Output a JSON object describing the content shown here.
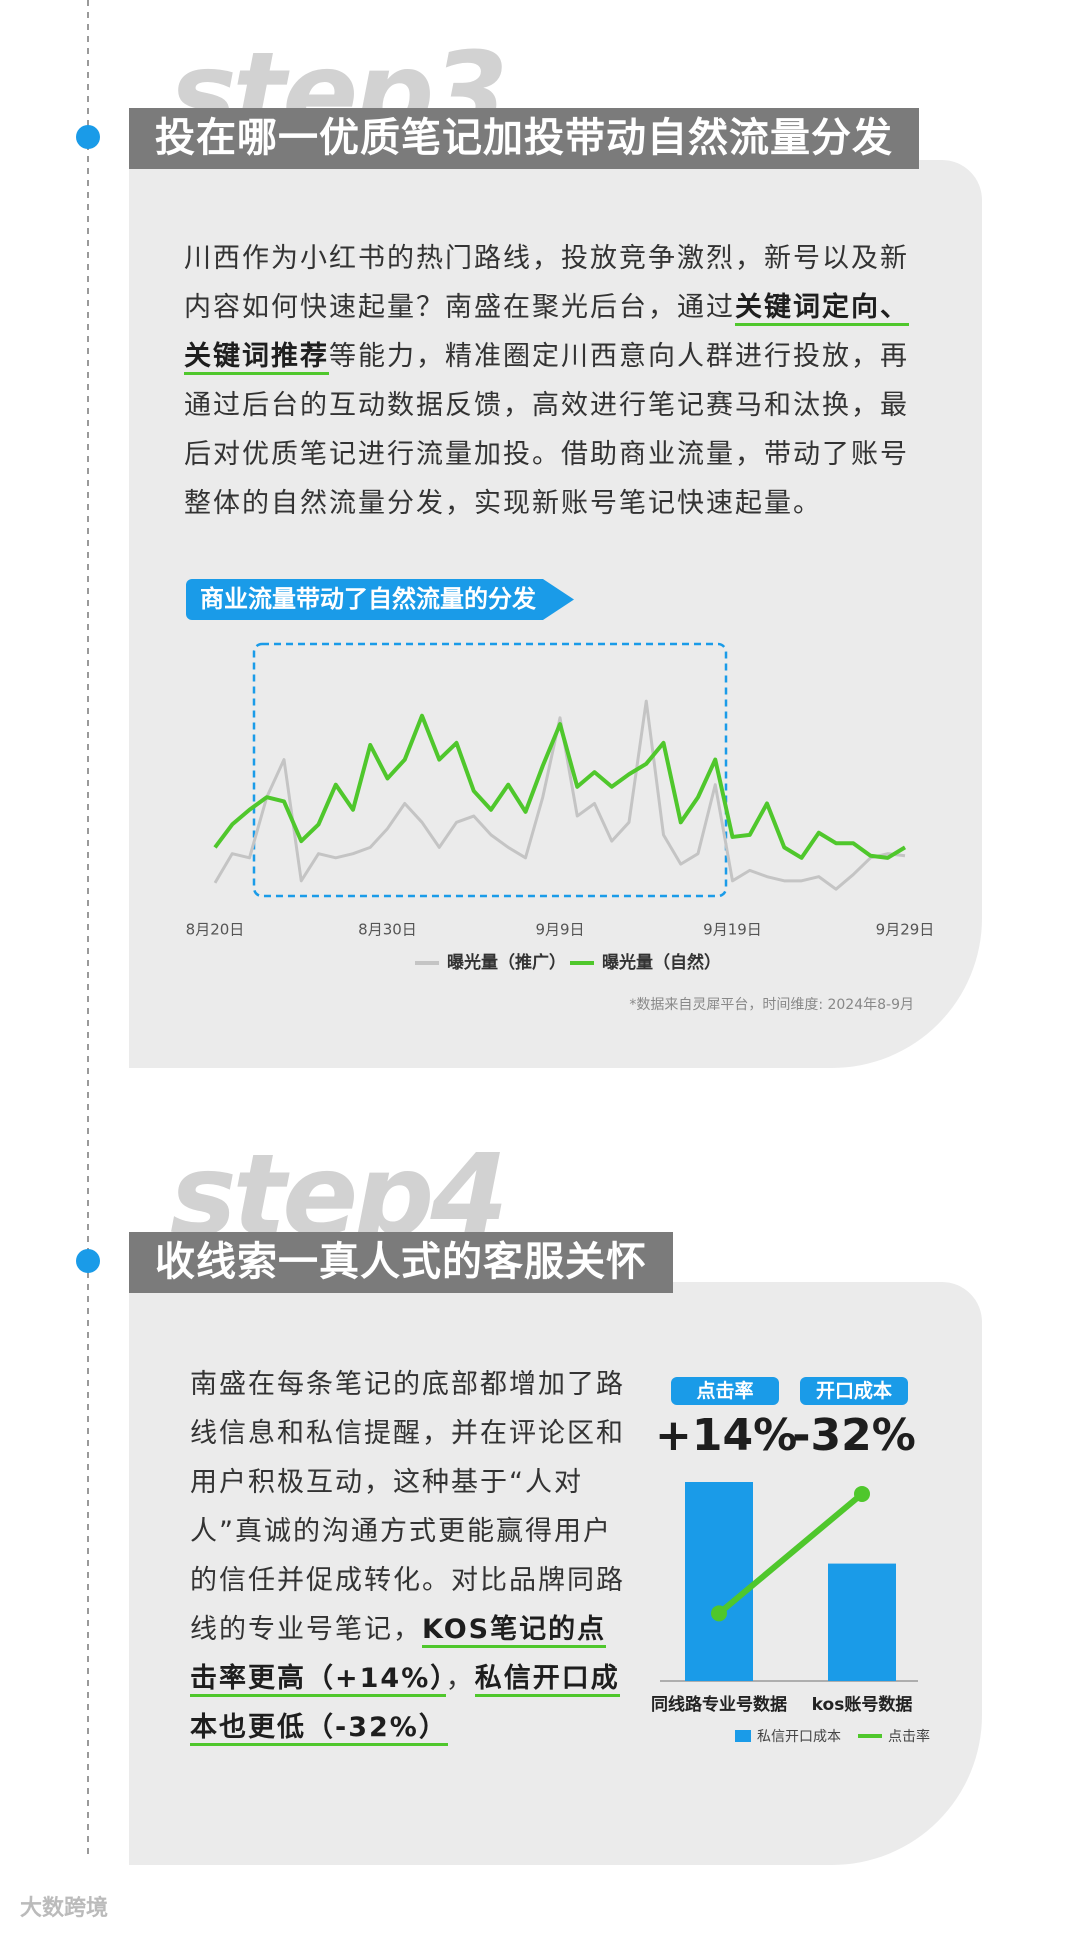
{
  "step3": {
    "heading": "step3",
    "title": "投在哪一优质笔记加投带动自然流量分发",
    "paragraph": [
      {
        "text": "川西作为小红书的热门路线，投放竞争激烈，新号以及新内容如何快速起量？南盛在聚光后台，通过",
        "emphasis": false
      },
      {
        "text": "关键词定向、关键词推荐",
        "emphasis": true
      },
      {
        "text": "等能力，精准圈定川西意向人群进行投放，再通过后台的互动数据反馈，高效进行笔记赛马和汰换，最后对优质笔记进行流量加投。借助商业流量，带动了账号整体的自然流量分发，实现新账号笔记快速起量。",
        "emphasis": false
      }
    ],
    "chart_data": {
      "type": "line",
      "title": "商业流量带动了自然流量的分发",
      "categories": [
        "8月20日",
        null,
        null,
        null,
        null,
        null,
        null,
        null,
        null,
        null,
        "8月30日",
        null,
        null,
        null,
        null,
        null,
        null,
        null,
        null,
        null,
        "9月9日",
        null,
        null,
        null,
        null,
        null,
        null,
        null,
        null,
        null,
        "9月19日",
        null,
        null,
        null,
        null,
        null,
        null,
        null,
        null,
        null,
        "9月29日"
      ],
      "series": [
        {
          "name": "曝光量（推广）",
          "color": "#c4c4c4",
          "values": [
            12,
            26,
            24,
            53,
            71,
            13,
            26,
            24,
            26,
            29,
            38,
            50,
            41,
            29,
            41,
            44,
            35,
            29,
            24,
            53,
            91,
            44,
            50,
            32,
            41,
            99,
            35,
            21,
            26,
            59,
            13,
            18,
            15,
            13,
            13,
            15,
            9,
            16,
            24,
            26,
            25
          ]
        },
        {
          "name": "曝光量（自然）",
          "color": "#4fc72c",
          "values": [
            29,
            40,
            47,
            53,
            51,
            32,
            40,
            59,
            47,
            78,
            62,
            71,
            92,
            71,
            79,
            56,
            47,
            59,
            46,
            68,
            88,
            58,
            65,
            58,
            64,
            69,
            79,
            41,
            53,
            71,
            34,
            35,
            50,
            29,
            24,
            36,
            31,
            31,
            25,
            24,
            29
          ]
        }
      ],
      "ylim": [
        0,
        100
      ],
      "note": "*数据来自灵犀平台，时间维度: 2024年8-9月"
    }
  },
  "step4": {
    "heading": "step4",
    "title": "收线索一真人式的客服关怀",
    "paragraph": [
      {
        "text": "南盛在每条笔记的底部都增加了路线信息和私信提醒，并在评论区和用户积极互动，这种基于“人对人”真诚的沟通方式更能赢得用户的信任并促成转化。对比品牌同路线的专业号笔记，",
        "emphasis": false
      },
      {
        "text": "KOS笔记的点击率更高（+14%）",
        "emphasis": true
      },
      {
        "text": "，",
        "emphasis": false
      },
      {
        "text": "私信开口成本也更低（-32%）",
        "emphasis": true
      }
    ],
    "chart_data": {
      "type": "combo",
      "categories": [
        "同线路专业号数据",
        "kos账号数据"
      ],
      "series": [
        {
          "name": "私信开口成本",
          "type": "bar",
          "color": "#1a9be8",
          "values": [
            100,
            59
          ]
        },
        {
          "name": "点击率",
          "type": "line",
          "color": "#4fc72c",
          "values": [
            34,
            94
          ]
        }
      ],
      "ylim": [
        0,
        100
      ],
      "annotations": [
        {
          "label": "点击率",
          "value": "+14%"
        },
        {
          "label": "开口成本",
          "value": "-32%"
        }
      ]
    }
  },
  "watermark": "大数跨境"
}
